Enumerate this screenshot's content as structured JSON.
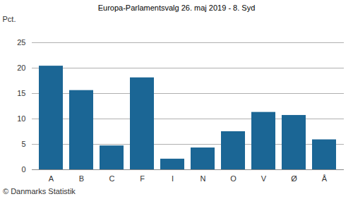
{
  "chart_data": {
    "type": "bar",
    "title": "Europa-Parlamentsvalg 26. maj 2019 - 8. Syd",
    "y_label": "Pct.",
    "caption": "© Danmarks Statistik",
    "categories": [
      "A",
      "B",
      "C",
      "F",
      "I",
      "N",
      "O",
      "V",
      "Ø",
      "Å"
    ],
    "values": [
      20.4,
      15.6,
      4.7,
      18.1,
      2.1,
      4.3,
      7.5,
      11.3,
      10.7,
      5.9
    ],
    "color": "#1b6695",
    "ylim": [
      0,
      25
    ],
    "yticks": [
      0,
      5,
      10,
      15,
      20,
      25
    ],
    "grid": true
  }
}
